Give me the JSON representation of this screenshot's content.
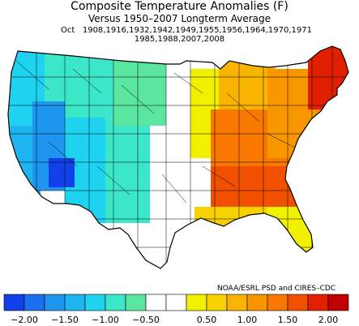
{
  "title": "Composite Temperature Anomalies (F)",
  "subtitle": "Versus 1950–2007 Longterm Average",
  "month": "Oct",
  "years_line1": "1908,1916,1932,1942,1949,1955,1956,1964,1970,1971",
  "years_line2": "1985,1988,2007,2008",
  "credit": "NOAA/ESRL PSD and CIRES–CDC",
  "legend": {
    "bins": [
      "#1240e8",
      "#1e6ef0",
      "#1e96f0",
      "#1eb4f0",
      "#1ed2f0",
      "#3ce6c8",
      "#5ae6a0",
      "#ffffff",
      "#ffffff",
      "#f0f000",
      "#f8d200",
      "#f8b400",
      "#f89600",
      "#f87800",
      "#f05000",
      "#e02000",
      "#c00000"
    ],
    "ticks": [
      "−2.00",
      "−1.50",
      "−1.00",
      "−0.50",
      "0.50",
      "1.00",
      "1.50",
      "2.00"
    ]
  },
  "map_regions": [
    {
      "name": "pacific-northwest",
      "color": "#1ed2f0"
    },
    {
      "name": "northern-rockies",
      "color": "#3ce6c8"
    },
    {
      "name": "california",
      "color": "#1eb4f0"
    },
    {
      "name": "great-basin",
      "color": "#1e96f0"
    },
    {
      "name": "four-corners",
      "color": "#1ed2f0"
    },
    {
      "name": "arizona-cold-spot",
      "color": "#1240e8"
    },
    {
      "name": "central-rockies",
      "color": "#3ce6c8"
    },
    {
      "name": "northern-plains",
      "color": "#5ae6a0"
    },
    {
      "name": "southern-plains",
      "color": "#ffffff"
    },
    {
      "name": "upper-midwest",
      "color": "#f0f000"
    },
    {
      "name": "midwest",
      "color": "#f8b400"
    },
    {
      "name": "great-lakes",
      "color": "#f87800"
    },
    {
      "name": "ohio-valley",
      "color": "#f89600"
    },
    {
      "name": "northeast",
      "color": "#e02000"
    },
    {
      "name": "new-england",
      "color": "#f05000"
    },
    {
      "name": "southeast",
      "color": "#f8d200"
    },
    {
      "name": "gulf-coast",
      "color": "#f0f000"
    },
    {
      "name": "florida",
      "color": "#ffffff"
    }
  ]
}
